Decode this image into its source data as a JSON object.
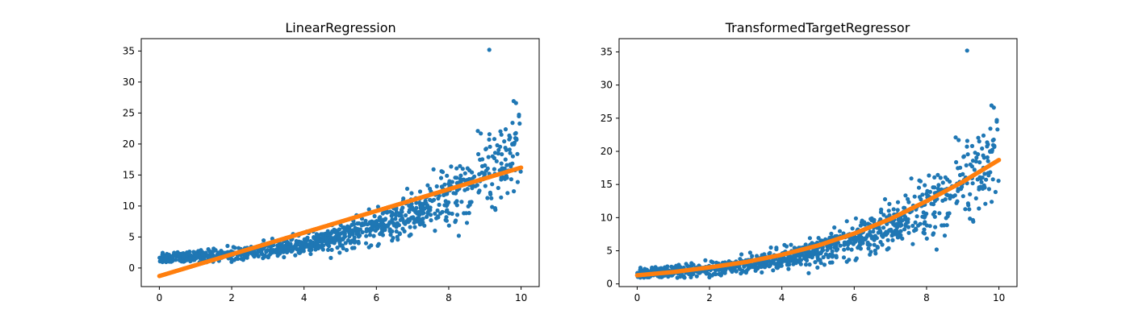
{
  "figure": {
    "background": "#ffffff"
  },
  "colors": {
    "points": "#1f77b4",
    "prediction": "#ff7f0e",
    "axes": "#000000"
  },
  "chart_data": [
    {
      "type": "scatter",
      "title": "LinearRegression",
      "xlabel": "",
      "ylabel": "",
      "xlim": [
        -0.5,
        10.5
      ],
      "ylim": [
        -3.0,
        37.0
      ],
      "xticks": [
        "0",
        "2",
        "4",
        "6",
        "8",
        "10"
      ],
      "yticks": [
        "0",
        "5",
        "10",
        "15",
        "20",
        "25",
        "30",
        "35"
      ],
      "grid": false,
      "series": [
        {
          "kind": "points",
          "color": "#1f77b4",
          "generator": "exp-noise",
          "n": 1000,
          "x_range": [
            0,
            10
          ],
          "trend": "y = exp(0.3*x)+0.5",
          "max_y": 35.2
        },
        {
          "kind": "prediction",
          "color": "#ff7f0e",
          "x": [
            0,
            10
          ],
          "y": [
            -1.3,
            16.2
          ]
        }
      ]
    },
    {
      "type": "scatter",
      "title": "TransformedTargetRegressor",
      "xlabel": "",
      "ylabel": "",
      "xlim": [
        -0.5,
        10.5
      ],
      "ylim": [
        -0.4,
        37.0
      ],
      "xticks": [
        "0",
        "2",
        "4",
        "6",
        "8",
        "10"
      ],
      "yticks": [
        "0",
        "5",
        "10",
        "15",
        "20",
        "25",
        "30",
        "35"
      ],
      "grid": false,
      "series": [
        {
          "kind": "points",
          "color": "#1f77b4",
          "generator": "exp-noise",
          "n": 1000,
          "x_range": [
            0,
            10
          ],
          "trend": "y = exp(0.3*x)+0.5",
          "max_y": 35.2
        },
        {
          "kind": "prediction",
          "color": "#ff7f0e",
          "x": [
            0,
            1,
            2,
            3,
            4,
            5,
            6,
            7,
            8,
            9,
            10
          ],
          "y": [
            1.3,
            1.8,
            2.5,
            3.3,
            4.4,
            5.8,
            7.6,
            9.8,
            12.5,
            15.4,
            18.7
          ]
        }
      ]
    }
  ]
}
